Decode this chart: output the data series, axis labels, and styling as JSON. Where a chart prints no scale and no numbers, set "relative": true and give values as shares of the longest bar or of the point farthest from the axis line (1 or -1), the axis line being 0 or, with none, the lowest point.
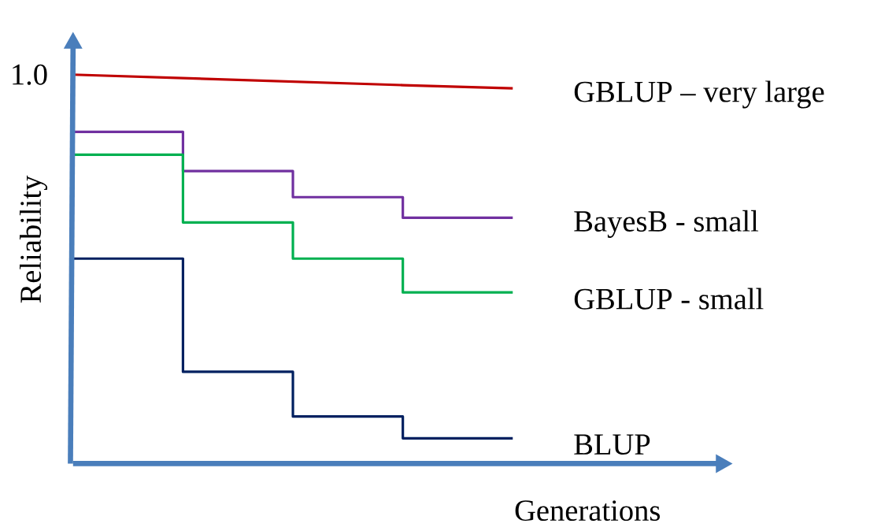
{
  "chart_data": {
    "type": "step",
    "relative": true,
    "xlabel": "Generations",
    "ylabel": "Reliability",
    "categories": [
      null,
      null,
      null,
      null,
      null
    ],
    "annotations": [
      "1.0"
    ],
    "series": [
      {
        "name": "GBLUP – very large",
        "type": "line",
        "color": "#c00000",
        "values": [
          1.0,
          0.991,
          0.982,
          0.973,
          0.965
        ]
      },
      {
        "name": "BayesB - small",
        "color": "#7030a0",
        "values": [
          0.853,
          0.752,
          0.685,
          0.632,
          0.632
        ]
      },
      {
        "name": "GBLUP - small",
        "color": "#00b050",
        "values": [
          0.794,
          0.62,
          0.527,
          0.44,
          0.44
        ]
      },
      {
        "name": "BLUP",
        "color": "#002060",
        "values": [
          0.527,
          0.236,
          0.121,
          0.065,
          0.065
        ]
      }
    ]
  }
}
